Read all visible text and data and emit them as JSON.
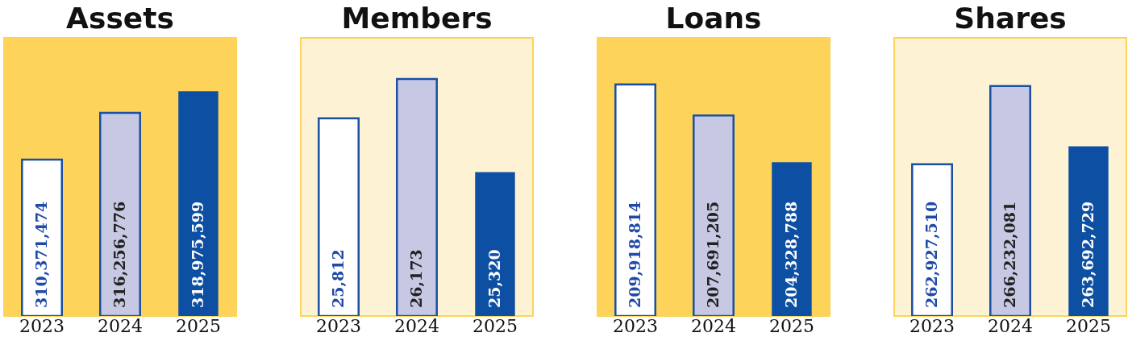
{
  "chart_data": [
    {
      "type": "bar",
      "title": "Assets",
      "categories": [
        "2023",
        "2024",
        "2025"
      ],
      "values": [
        310371474,
        316256776,
        318975599
      ],
      "value_labels": [
        "310,371,474",
        "316,256,776",
        "318,975,599"
      ],
      "colors": [
        "#ffffff",
        "#c7c9e4",
        "#0d4fa3"
      ],
      "ylim": [
        290700000,
        325700000
      ],
      "tick_labels": "x"
    },
    {
      "type": "bar",
      "title": "Members",
      "categories": [
        "2023",
        "2024",
        "2025"
      ],
      "values": [
        25812,
        26173,
        25320
      ],
      "value_labels": [
        "25,812",
        "26,173",
        "25,320"
      ],
      "colors": [
        "#ffffff",
        "#c7c9e4",
        "#0d4fa3"
      ],
      "ylim": [
        24000,
        26550
      ],
      "tick_labels": "x"
    },
    {
      "type": "bar",
      "title": "Loans",
      "categories": [
        "2023",
        "2024",
        "2025"
      ],
      "values": [
        209918814,
        207691205,
        204328788
      ],
      "value_labels": [
        "209,918,814",
        "207,691,205",
        "204,328,788"
      ],
      "colors": [
        "#ffffff",
        "#c7c9e4",
        "#0d4fa3"
      ],
      "ylim": [
        193260000,
        213270000
      ],
      "tick_labels": "x"
    },
    {
      "type": "bar",
      "title": "Shares",
      "categories": [
        "2023",
        "2024",
        "2025"
      ],
      "values": [
        262927510,
        266232081,
        263692729
      ],
      "value_labels": [
        "262,927,510",
        "266,232,081",
        "263,692,729"
      ],
      "colors": [
        "#ffffff",
        "#c7c9e4",
        "#0d4fa3"
      ],
      "ylim": [
        256520000,
        268270000
      ],
      "tick_labels": "x"
    }
  ]
}
